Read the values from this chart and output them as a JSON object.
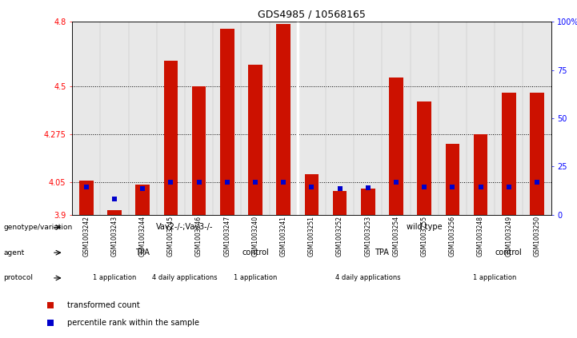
{
  "title": "GDS4985 / 10568165",
  "samples": [
    "GSM1003242",
    "GSM1003243",
    "GSM1003244",
    "GSM1003245",
    "GSM1003246",
    "GSM1003247",
    "GSM1003240",
    "GSM1003241",
    "GSM1003251",
    "GSM1003252",
    "GSM1003253",
    "GSM1003254",
    "GSM1003255",
    "GSM1003256",
    "GSM1003248",
    "GSM1003249",
    "GSM1003250"
  ],
  "red_values": [
    4.06,
    3.92,
    4.04,
    4.62,
    4.5,
    4.77,
    4.6,
    4.79,
    4.09,
    4.01,
    4.02,
    4.54,
    4.43,
    4.23,
    4.275,
    4.47,
    4.47
  ],
  "blue_values": [
    4.03,
    3.975,
    4.02,
    4.05,
    4.05,
    4.053,
    4.053,
    4.053,
    4.03,
    4.02,
    4.025,
    4.05,
    4.03,
    4.03,
    4.03,
    4.03,
    4.05
  ],
  "ylim_left": [
    3.9,
    4.8
  ],
  "ylim_right": [
    0,
    100
  ],
  "yticks_left": [
    3.9,
    4.05,
    4.275,
    4.5,
    4.8
  ],
  "yticks_right": [
    0,
    25,
    50,
    75,
    100
  ],
  "ytick_labels_left": [
    "3.9",
    "4.05",
    "4.275",
    "4.5",
    "4.8"
  ],
  "ytick_labels_right": [
    "0",
    "25",
    "50",
    "75",
    "100%"
  ],
  "hlines": [
    4.05,
    4.275,
    4.5
  ],
  "bar_color": "#cc1100",
  "blue_color": "#0000cc",
  "bar_bottom": 3.9,
  "bar_width": 0.5,
  "blue_marker_size": 5,
  "genotype_groups": [
    {
      "label": "Vav2-/-;Vav3-/-",
      "start": 0,
      "end": 7,
      "color": "#99dd99"
    },
    {
      "label": "wild type",
      "start": 8,
      "end": 16,
      "color": "#55cc55"
    }
  ],
  "agent_groups": [
    {
      "label": "TPA",
      "start": 0,
      "end": 4,
      "color": "#aaaaee"
    },
    {
      "label": "control",
      "start": 5,
      "end": 7,
      "color": "#8888cc"
    },
    {
      "label": "TPA",
      "start": 8,
      "end": 13,
      "color": "#aaaaee"
    },
    {
      "label": "control",
      "start": 14,
      "end": 16,
      "color": "#8888cc"
    }
  ],
  "protocol_groups": [
    {
      "label": "1 application",
      "start": 0,
      "end": 2,
      "color": "#f4c0c0"
    },
    {
      "label": "4 daily applications",
      "start": 3,
      "end": 4,
      "color": "#dd8888"
    },
    {
      "label": "1 application",
      "start": 5,
      "end": 7,
      "color": "#f4c0c0"
    },
    {
      "label": "4 daily applications",
      "start": 8,
      "end": 12,
      "color": "#dd8888"
    },
    {
      "label": "1 application",
      "start": 13,
      "end": 16,
      "color": "#f4c0c0"
    }
  ],
  "row_labels": [
    "genotype/variation",
    "agent",
    "protocol"
  ],
  "legend_items": [
    {
      "label": "transformed count",
      "color": "#cc1100"
    },
    {
      "label": "percentile rank within the sample",
      "color": "#0000cc"
    }
  ],
  "bg_color": "#e8e8e8",
  "chart_bg": "#f8f8f8"
}
